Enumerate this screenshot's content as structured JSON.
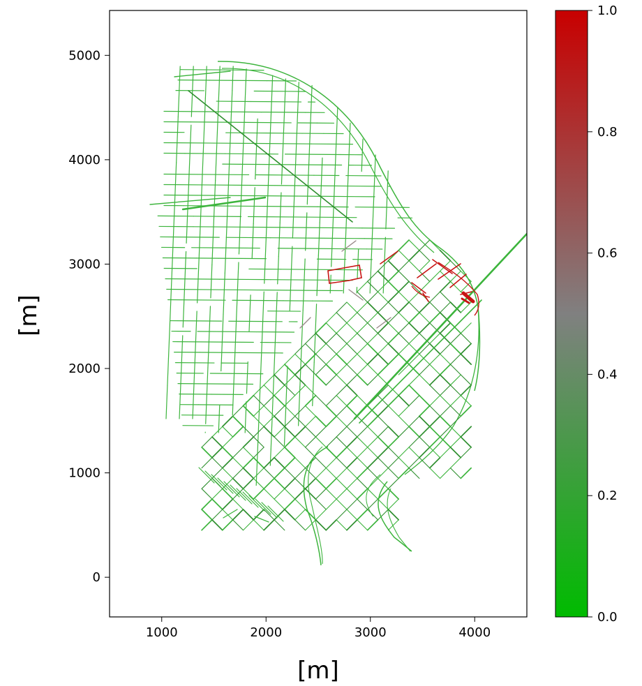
{
  "chart_data": {
    "type": "network-map",
    "xlabel": "[m]",
    "ylabel": "[m]",
    "xlim": [
      500,
      4500
    ],
    "ylim": [
      -380,
      5430
    ],
    "xticks": [
      1000,
      2000,
      3000,
      4000
    ],
    "yticks": [
      0,
      1000,
      2000,
      3000,
      4000,
      5000
    ],
    "colorbar": {
      "range": [
        0.0,
        1.0
      ],
      "ticks": [
        "0.0",
        "0.2",
        "0.4",
        "0.6",
        "0.8",
        "1.0"
      ],
      "colors": {
        "low": "#00bb00",
        "mid": "#808080",
        "high": "#c80000"
      }
    },
    "street_color": "#3cb43c",
    "hot_color": "#c81414",
    "diag_grid_color": "#2f8f2f"
  }
}
